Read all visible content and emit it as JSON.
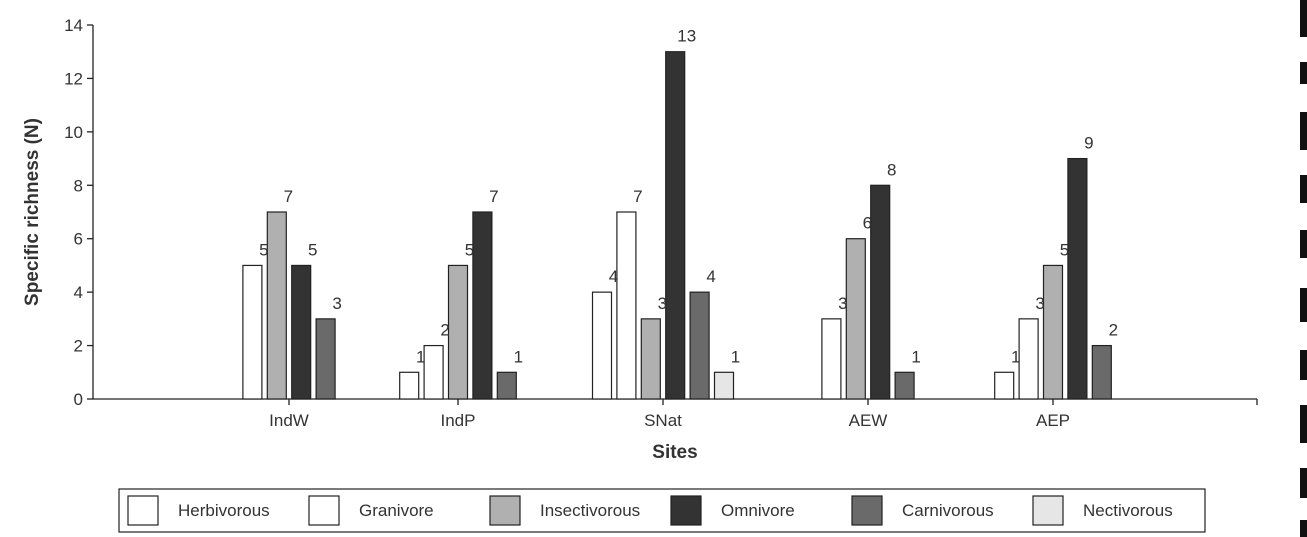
{
  "chart_data": {
    "type": "bar",
    "xlabel": "Sites",
    "ylabel": "Specific richness  (N)",
    "ylim": [
      0,
      14
    ],
    "yticks": [
      0,
      2,
      4,
      6,
      8,
      10,
      12,
      14
    ],
    "grid": false,
    "legend_position": "bottom",
    "categories": [
      "IndW",
      "IndP",
      "SNat",
      "AEW",
      "AEP"
    ],
    "series": [
      {
        "name": "Herbivorous",
        "color": "#ffffff",
        "values": [
          5,
          1,
          4,
          3,
          1
        ],
        "labels": [
          "5",
          "1",
          "4",
          "3",
          "1"
        ]
      },
      {
        "name": "Granivore",
        "color": "#ffffff",
        "values": [
          null,
          2,
          7,
          null,
          3
        ],
        "labels": [
          "",
          "2",
          "7",
          "",
          "3"
        ]
      },
      {
        "name": "Insectivorous",
        "color": "#b0b0b0",
        "values": [
          7,
          5,
          3,
          6,
          5
        ],
        "labels": [
          "7",
          "5",
          "3",
          "6",
          "5"
        ]
      },
      {
        "name": "Omnivore",
        "color": "#333333",
        "values": [
          5,
          7,
          13,
          8,
          9
        ],
        "labels": [
          "5",
          "7",
          "13",
          "8",
          "9"
        ]
      },
      {
        "name": "Carnivorous",
        "color": "#6a6a6a",
        "values": [
          3,
          1,
          4,
          1,
          2
        ],
        "labels": [
          "3",
          "1",
          "4",
          "1",
          "2"
        ]
      },
      {
        "name": "Nectivorous",
        "color": "#e6e6e6",
        "values": [
          null,
          null,
          1,
          null,
          null
        ],
        "labels": [
          "",
          "",
          "1",
          "",
          ""
        ]
      }
    ]
  }
}
